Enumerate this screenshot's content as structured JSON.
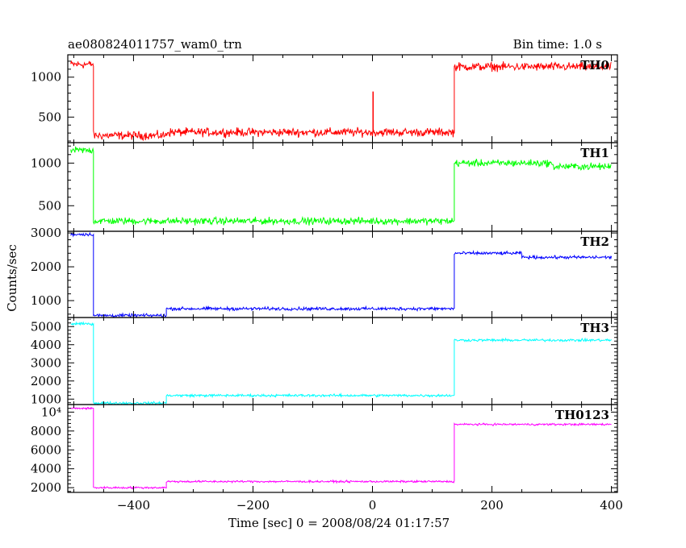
{
  "chart_data": {
    "type": "line",
    "title": "ae080824011757_wam0_trn",
    "bin_time": "Bin time: 1.0 s",
    "xlabel": "Time [sec] 0 = 2008/08/24 01:17:57",
    "ylabel": "Counts/sec",
    "xlim": [
      -510,
      410
    ],
    "xticks": [
      -400,
      -200,
      0,
      200,
      400
    ],
    "x_tick_labels": [
      "−400",
      "−200",
      "0",
      "200",
      "400"
    ],
    "series": [
      {
        "name": "TH0",
        "color": "#ff0000",
        "ylim": [
          180,
          1280
        ],
        "yticks": [
          500,
          1000
        ],
        "ytick_labels": [
          "500",
          "1000"
        ],
        "noise": 45,
        "levels": [
          {
            "x": [
              -505,
              -467
            ],
            "y": 1160
          },
          {
            "x": [
              -467,
              -345
            ],
            "y": 270
          },
          {
            "x": [
              -345,
              137
            ],
            "y": 310
          },
          {
            "x": [
              137,
              400
            ],
            "y": 1130
          }
        ],
        "spikes": [
          {
            "x": 1,
            "y": 820
          }
        ]
      },
      {
        "name": "TH1",
        "color": "#00ff00",
        "ylim": [
          200,
          1240
        ],
        "yticks": [
          500,
          1000
        ],
        "ytick_labels": [
          "500",
          "1000"
        ],
        "noise": 35,
        "levels": [
          {
            "x": [
              -505,
              -467
            ],
            "y": 1150
          },
          {
            "x": [
              -467,
              137
            ],
            "y": 320
          },
          {
            "x": [
              137,
              300
            ],
            "y": 1000
          },
          {
            "x": [
              300,
              400
            ],
            "y": 960
          }
        ],
        "spikes": []
      },
      {
        "name": "TH2",
        "color": "#0000ff",
        "ylim": [
          500,
          3050
        ],
        "yticks": [
          1000,
          2000,
          3000
        ],
        "ytick_labels": [
          "1000",
          "2000",
          "3000"
        ],
        "noise": 40,
        "levels": [
          {
            "x": [
              -505,
              -467
            ],
            "y": 2960
          },
          {
            "x": [
              -467,
              -345
            ],
            "y": 560
          },
          {
            "x": [
              -345,
              137
            ],
            "y": 760
          },
          {
            "x": [
              137,
              250
            ],
            "y": 2400
          },
          {
            "x": [
              250,
              400
            ],
            "y": 2280
          }
        ],
        "spikes": []
      },
      {
        "name": "TH3",
        "color": "#00ffff",
        "ylim": [
          700,
          5500
        ],
        "yticks": [
          1000,
          2000,
          3000,
          4000,
          5000
        ],
        "ytick_labels": [
          "1000",
          "2000",
          "3000",
          "4000",
          "5000"
        ],
        "noise": 60,
        "levels": [
          {
            "x": [
              -505,
              -467
            ],
            "y": 5150
          },
          {
            "x": [
              -467,
              -345
            ],
            "y": 780
          },
          {
            "x": [
              -345,
              137
            ],
            "y": 1200
          },
          {
            "x": [
              137,
              400
            ],
            "y": 4250
          }
        ],
        "spikes": []
      },
      {
        "name": "TH0123",
        "color": "#ff00ff",
        "ylim": [
          1500,
          10800
        ],
        "yticks": [
          2000,
          4000,
          6000,
          8000,
          10000
        ],
        "ytick_labels": [
          "2000",
          "4000",
          "6000",
          "8000",
          "10⁴"
        ],
        "noise": 90,
        "levels": [
          {
            "x": [
              -505,
              -467
            ],
            "y": 10400
          },
          {
            "x": [
              -467,
              -345
            ],
            "y": 2000
          },
          {
            "x": [
              -345,
              137
            ],
            "y": 2650
          },
          {
            "x": [
              137,
              400
            ],
            "y": 8700
          }
        ],
        "spikes": []
      }
    ]
  }
}
